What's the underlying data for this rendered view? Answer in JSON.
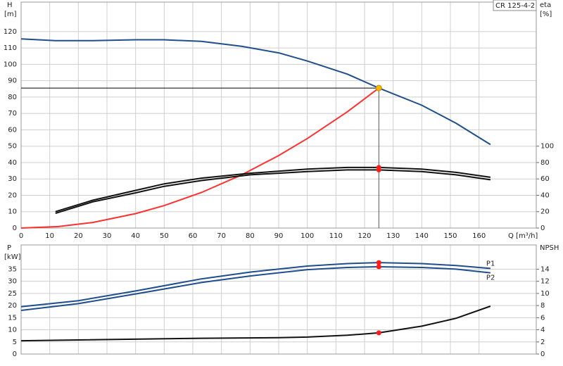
{
  "chart_data": [
    {
      "type": "line",
      "title": "CR 125-4-2",
      "ylabel": "H",
      "yunit": "[m]",
      "y2label": "eta",
      "y2unit": "[%]",
      "xlabel": "Q [m³/h]",
      "xlim": [
        0,
        180
      ],
      "xticks": [
        0,
        10,
        20,
        30,
        40,
        50,
        60,
        70,
        80,
        90,
        100,
        110,
        120,
        130,
        140,
        150,
        160
      ],
      "ylim": [
        0,
        138
      ],
      "yticks": [
        0,
        10,
        20,
        30,
        40,
        50,
        60,
        70,
        80,
        90,
        100,
        110,
        120
      ],
      "y2lim": [
        0,
        276
      ],
      "y2ticks": [
        0,
        20,
        40,
        60,
        80,
        100
      ],
      "grid": true,
      "duty_point": {
        "x": 125,
        "y": 85.5,
        "color": "#f5b800"
      },
      "series": [
        {
          "color": "#1f4e8c",
          "x": [
            0,
            12,
            25,
            40,
            50,
            63,
            77,
            90,
            100,
            114,
            125,
            140,
            152,
            164
          ],
          "values": [
            115.5,
            114.5,
            114.5,
            115,
            115,
            114,
            111,
            107,
            102,
            94,
            85.5,
            75,
            64,
            51
          ]
        },
        {
          "color": "#ff3030",
          "x": [
            0,
            13,
            25,
            40,
            50,
            63,
            77,
            90,
            100,
            114,
            125
          ],
          "values": [
            0,
            0.9,
            3.4,
            8.8,
            13.7,
            21.7,
            32.4,
            44.3,
            54.7,
            71,
            85.5
          ]
        },
        {
          "color": "#111111",
          "axis": "y2",
          "x": [
            12,
            25,
            40,
            50,
            63,
            80,
            100,
            114,
            125,
            140,
            152,
            164
          ],
          "values": [
            20,
            34,
            46,
            54,
            61,
            67,
            72,
            74,
            74,
            72,
            68,
            62
          ]
        },
        {
          "color": "#111111",
          "axis": "y2",
          "x": [
            12,
            25,
            40,
            50,
            63,
            80,
            100,
            114,
            125,
            140,
            152,
            164
          ],
          "values": [
            18,
            32,
            43,
            51,
            58,
            65,
            69,
            71,
            71,
            69,
            65,
            59
          ]
        }
      ]
    },
    {
      "type": "line",
      "ylabel": "P",
      "yunit": "[kW]",
      "y2label": "NPSH",
      "xlim": [
        0,
        180
      ],
      "xticks": [
        0,
        10,
        20,
        30,
        40,
        50,
        60,
        70,
        80,
        90,
        100,
        110,
        120,
        130,
        140,
        150,
        160
      ],
      "ylim": [
        0,
        45
      ],
      "yticks": [
        0,
        5,
        10,
        15,
        20,
        25,
        30,
        35
      ],
      "y2lim": [
        0,
        18
      ],
      "y2ticks": [
        0,
        2,
        4,
        6,
        8,
        10,
        12,
        14
      ],
      "grid": true,
      "duty_point": {
        "x": 125
      },
      "series": [
        {
          "name": "P1",
          "color": "#1f4e8c",
          "x": [
            0,
            20,
            40,
            63,
            80,
            100,
            114,
            125,
            140,
            152,
            164
          ],
          "values": [
            19.5,
            22,
            26,
            31,
            33.8,
            36.3,
            37.3,
            37.7,
            37.3,
            36.5,
            35.3
          ]
        },
        {
          "name": "P2",
          "color": "#1f4e8c",
          "x": [
            0,
            20,
            40,
            63,
            80,
            100,
            114,
            125,
            140,
            152,
            164
          ],
          "values": [
            18,
            20.8,
            24.8,
            29.5,
            32.2,
            34.8,
            35.7,
            36,
            35.7,
            35,
            33.5
          ]
        },
        {
          "color": "#111111",
          "axis": "y2",
          "x": [
            0,
            63,
            90,
            100,
            114,
            125,
            140,
            152,
            164
          ],
          "values": [
            2.2,
            2.6,
            2.7,
            2.8,
            3.1,
            3.5,
            4.6,
            5.9,
            7.9
          ]
        }
      ]
    }
  ]
}
